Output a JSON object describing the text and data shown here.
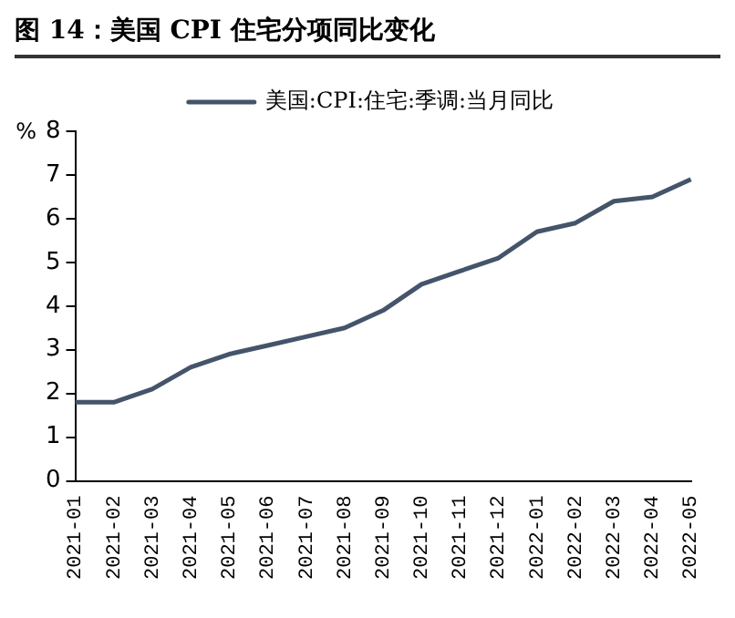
{
  "chart_data": {
    "type": "line",
    "title": "图 14：美国 CPI 住宅分项同比变化",
    "ylabel": "%",
    "categories": [
      "2021-01",
      "2021-02",
      "2021-03",
      "2021-04",
      "2021-05",
      "2021-06",
      "2021-07",
      "2021-08",
      "2021-09",
      "2021-10",
      "2021-11",
      "2021-12",
      "2022-01",
      "2022-02",
      "2022-03",
      "2022-04",
      "2022-05"
    ],
    "series": [
      {
        "name": "美国:CPI:住宅:季调:当月同比",
        "color": "#44546a",
        "values": [
          1.8,
          1.8,
          2.1,
          2.6,
          2.9,
          3.1,
          3.3,
          3.5,
          3.9,
          4.5,
          4.8,
          5.1,
          5.7,
          5.9,
          6.4,
          6.5,
          6.9
        ]
      }
    ],
    "ylim": [
      0,
      8
    ],
    "yticks": [
      0,
      1,
      2,
      3,
      4,
      5,
      6,
      7,
      8
    ],
    "grid": false,
    "legend": "top",
    "marker": "none",
    "line_style": "solid"
  }
}
